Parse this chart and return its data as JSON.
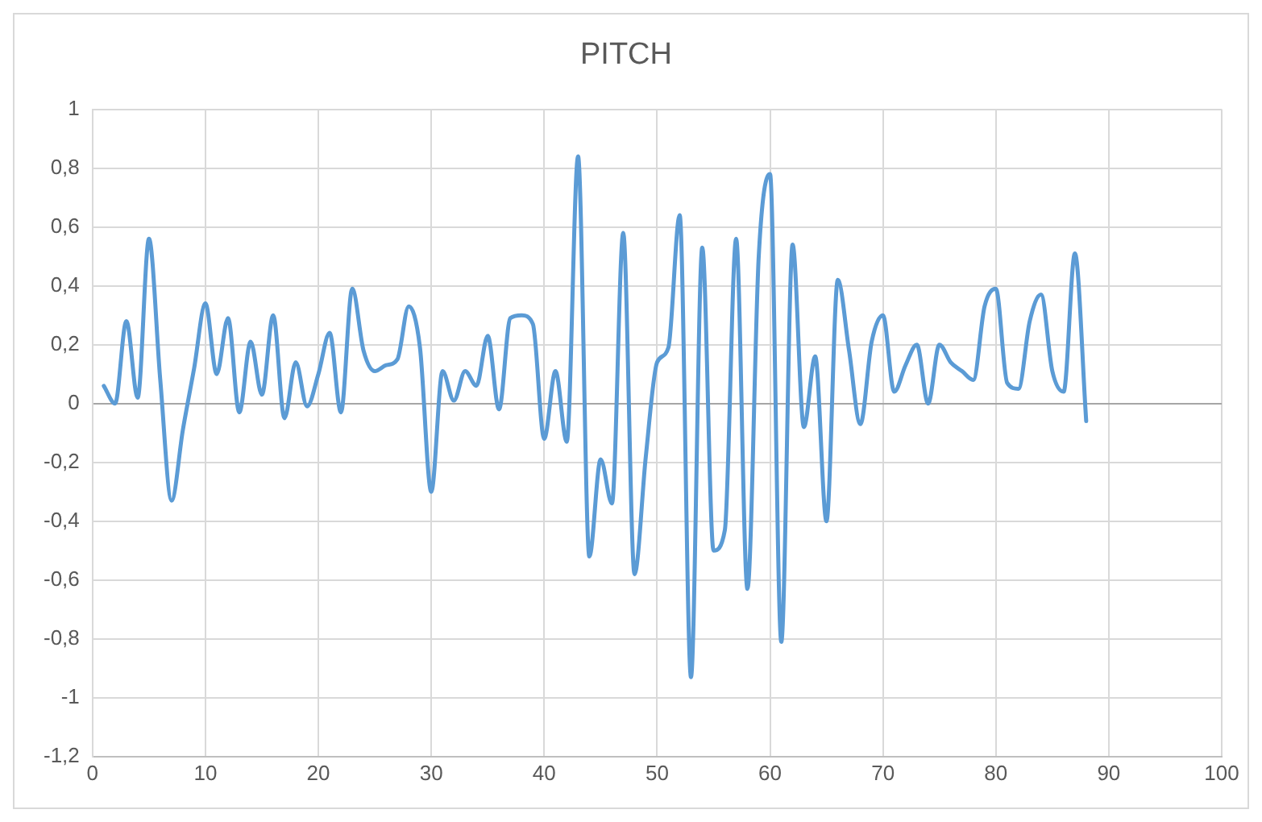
{
  "chart_data": {
    "type": "line",
    "title": "PITCH",
    "x": [
      1,
      2,
      3,
      4,
      5,
      6,
      7,
      8,
      9,
      10,
      11,
      12,
      13,
      14,
      15,
      16,
      17,
      18,
      19,
      20,
      21,
      22,
      23,
      24,
      25,
      26,
      27,
      28,
      29,
      30,
      31,
      32,
      33,
      34,
      35,
      36,
      37,
      38,
      39,
      40,
      41,
      42,
      43,
      44,
      45,
      46,
      47,
      48,
      49,
      50,
      51,
      52,
      53,
      54,
      55,
      56,
      57,
      58,
      59,
      60,
      61,
      62,
      63,
      64,
      65,
      66,
      67,
      68,
      69,
      70,
      71,
      72,
      73,
      74,
      75,
      76,
      77,
      78,
      79,
      80,
      81,
      82,
      83,
      84,
      85,
      86,
      87,
      88
    ],
    "series": [
      {
        "color": "#5b9bd5",
        "values": [
          0.06,
          0,
          0.28,
          0.02,
          0.56,
          0.08,
          -0.33,
          -0.09,
          0.12,
          0.34,
          0.1,
          0.29,
          -0.03,
          0.21,
          0.03,
          0.3,
          -0.05,
          0.14,
          -0.01,
          0.1,
          0.24,
          -0.03,
          0.39,
          0.18,
          0.11,
          0.13,
          0.15,
          0.33,
          0.19,
          -0.3,
          0.11,
          0.01,
          0.11,
          0.06,
          0.23,
          -0.02,
          0.29,
          0.3,
          0.27,
          -0.12,
          0.11,
          -0.13,
          0.84,
          -0.52,
          -0.19,
          -0.34,
          0.58,
          -0.58,
          -0.18,
          0.14,
          0.19,
          0.64,
          -0.93,
          0.53,
          -0.5,
          -0.43,
          0.56,
          -0.63,
          0.5,
          0.78,
          -0.81,
          0.54,
          -0.08,
          0.16,
          -0.4,
          0.42,
          0.18,
          -0.07,
          0.21,
          0.3,
          0.04,
          0.13,
          0.2,
          0,
          0.2,
          0.14,
          0.11,
          0.08,
          0.33,
          0.39,
          0.07,
          0.05,
          0.28,
          0.37,
          0.11,
          0.04,
          0.51,
          -0.06
        ]
      }
    ],
    "xlim": [
      0,
      100
    ],
    "xticks": [
      0,
      10,
      20,
      30,
      40,
      50,
      60,
      70,
      80,
      90,
      100
    ],
    "ylim": [
      -1.2,
      1
    ],
    "yticks": [
      {
        "value": -1.2,
        "label": "-1,2"
      },
      {
        "value": -1,
        "label": "-1"
      },
      {
        "value": -0.8,
        "label": "-0,8"
      },
      {
        "value": -0.6,
        "label": "-0,6"
      },
      {
        "value": -0.4,
        "label": "-0,4"
      },
      {
        "value": -0.2,
        "label": "-0,2"
      },
      {
        "value": 0,
        "label": "0"
      },
      {
        "value": 0.2,
        "label": "0,2"
      },
      {
        "value": 0.4,
        "label": "0,4"
      },
      {
        "value": 0.6,
        "label": "0,6"
      },
      {
        "value": 0.8,
        "label": "0,8"
      },
      {
        "value": 1,
        "label": "1"
      }
    ],
    "grid": true,
    "legend": false,
    "marker": "none",
    "line_style": "solid"
  }
}
